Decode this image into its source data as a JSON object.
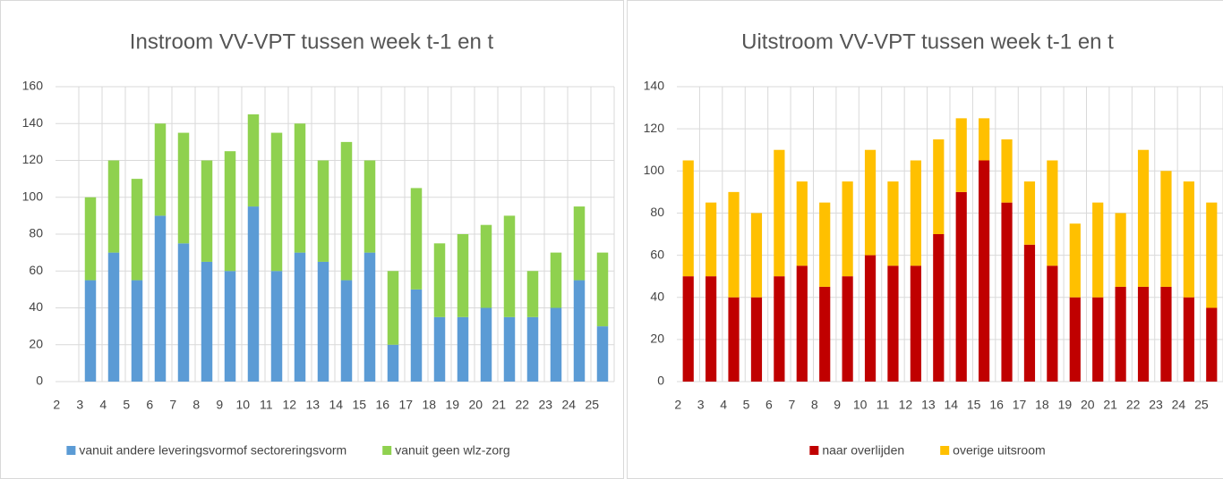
{
  "chart_data": [
    {
      "type": "bar",
      "stacked": true,
      "title": "Instroom VV-VPT tussen week t-1 en t",
      "categories": [
        "2",
        "3",
        "4",
        "5",
        "6",
        "7",
        "8",
        "9",
        "10",
        "11",
        "12",
        "13",
        "14",
        "15",
        "16",
        "17",
        "18",
        "19",
        "20",
        "21",
        "22",
        "23",
        "24",
        "25"
      ],
      "series": [
        {
          "name": "vanuit andere leveringsvormof sectoreringsvorm",
          "color": "#5b9bd5",
          "values": [
            null,
            55,
            70,
            55,
            90,
            75,
            65,
            60,
            95,
            60,
            70,
            65,
            55,
            70,
            20,
            50,
            35,
            35,
            40,
            35,
            35,
            40,
            55,
            30
          ]
        },
        {
          "name": "vanuit geen wlz-zorg",
          "color": "#8fd14f",
          "values": [
            null,
            45,
            50,
            55,
            50,
            60,
            55,
            65,
            50,
            75,
            70,
            55,
            75,
            50,
            40,
            55,
            40,
            45,
            45,
            55,
            25,
            30,
            40,
            40
          ]
        }
      ],
      "ylim": [
        0,
        160
      ],
      "yticks": [
        0,
        20,
        40,
        60,
        80,
        100,
        120,
        140,
        160
      ],
      "grid": true,
      "legend": "bottom"
    },
    {
      "type": "bar",
      "stacked": true,
      "title": "Uitstroom VV-VPT tussen week t-1 en t",
      "categories": [
        "2",
        "3",
        "4",
        "5",
        "6",
        "7",
        "8",
        "9",
        "10",
        "11",
        "12",
        "13",
        "14",
        "15",
        "16",
        "17",
        "18",
        "19",
        "20",
        "21",
        "22",
        "23",
        "24",
        "25"
      ],
      "series": [
        {
          "name": "naar overlijden",
          "color": "#c00000",
          "values": [
            50,
            50,
            40,
            40,
            50,
            55,
            45,
            50,
            60,
            55,
            55,
            70,
            90,
            105,
            85,
            65,
            55,
            40,
            40,
            45,
            45,
            45,
            40,
            35
          ]
        },
        {
          "name": "overige uitsroom",
          "color": "#ffc000",
          "values": [
            55,
            35,
            50,
            40,
            60,
            40,
            40,
            45,
            50,
            40,
            50,
            45,
            35,
            20,
            30,
            30,
            50,
            35,
            45,
            35,
            65,
            55,
            55,
            50
          ]
        }
      ],
      "ylim": [
        0,
        140
      ],
      "yticks": [
        0,
        20,
        40,
        60,
        80,
        100,
        120,
        140
      ],
      "grid": true,
      "legend": "bottom"
    }
  ]
}
